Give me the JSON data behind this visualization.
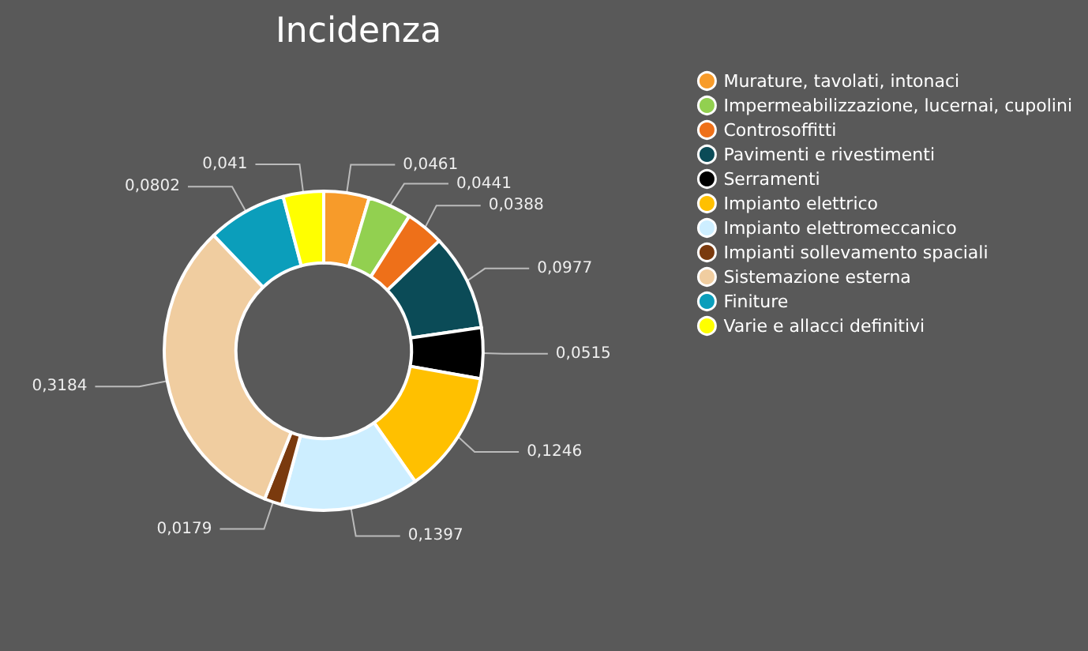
{
  "chart_data": {
    "type": "donut",
    "title": "Incidenza",
    "categories": [
      "Murature, tavolati, intonaci",
      "Impermeabilizzazione, lucernai, cupolini",
      "Controsoffitti",
      "Pavimenti e rivestimenti",
      "Serramenti",
      "Impianto elettrico",
      "Impianto elettromeccanico",
      "Impianti sollevamento spaciali",
      "Sistemazione esterna",
      "Finiture",
      "Varie e allacci definitivi"
    ],
    "values": [
      0.0461,
      0.0441,
      0.0388,
      0.0977,
      0.0515,
      0.1246,
      0.1397,
      0.0179,
      0.3184,
      0.0802,
      0.041
    ],
    "value_labels": [
      "0,0461",
      "0,0441",
      "0,0388",
      "0,0977",
      "0,0515",
      "0,1246",
      "0,1397",
      "0,0179",
      "0,3184",
      "0,0802",
      "0,041"
    ],
    "colors": [
      "#f79b2a",
      "#92d050",
      "#ee7019",
      "#0b4b57",
      "#000000",
      "#ffc000",
      "#cdeeff",
      "#7a3a0e",
      "#f0cda0",
      "#0b9ebb",
      "#ffff00"
    ],
    "legend": "top right"
  }
}
